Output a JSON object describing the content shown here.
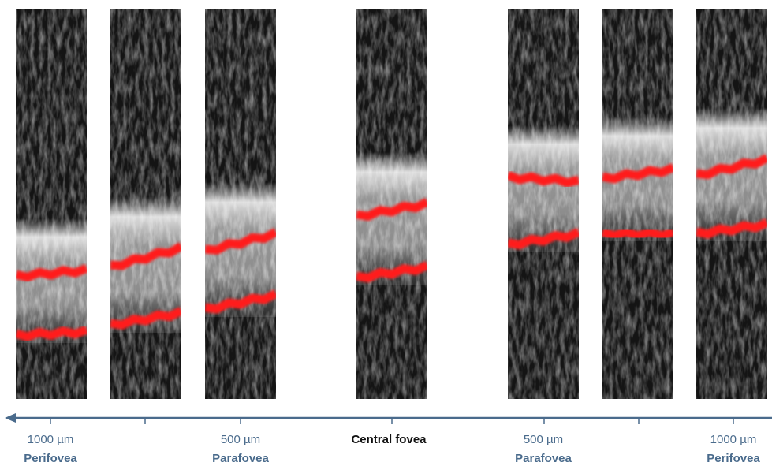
{
  "axis_labels": [
    {
      "distance": "1000 µm",
      "region": "Perifovea"
    },
    {
      "distance": "500 µm",
      "region": "Parafovea"
    },
    {
      "region": "Central fovea"
    },
    {
      "distance": "500 µm",
      "region": "Parafovea"
    },
    {
      "distance": "1000 µm",
      "region": "Perifovea"
    }
  ]
}
